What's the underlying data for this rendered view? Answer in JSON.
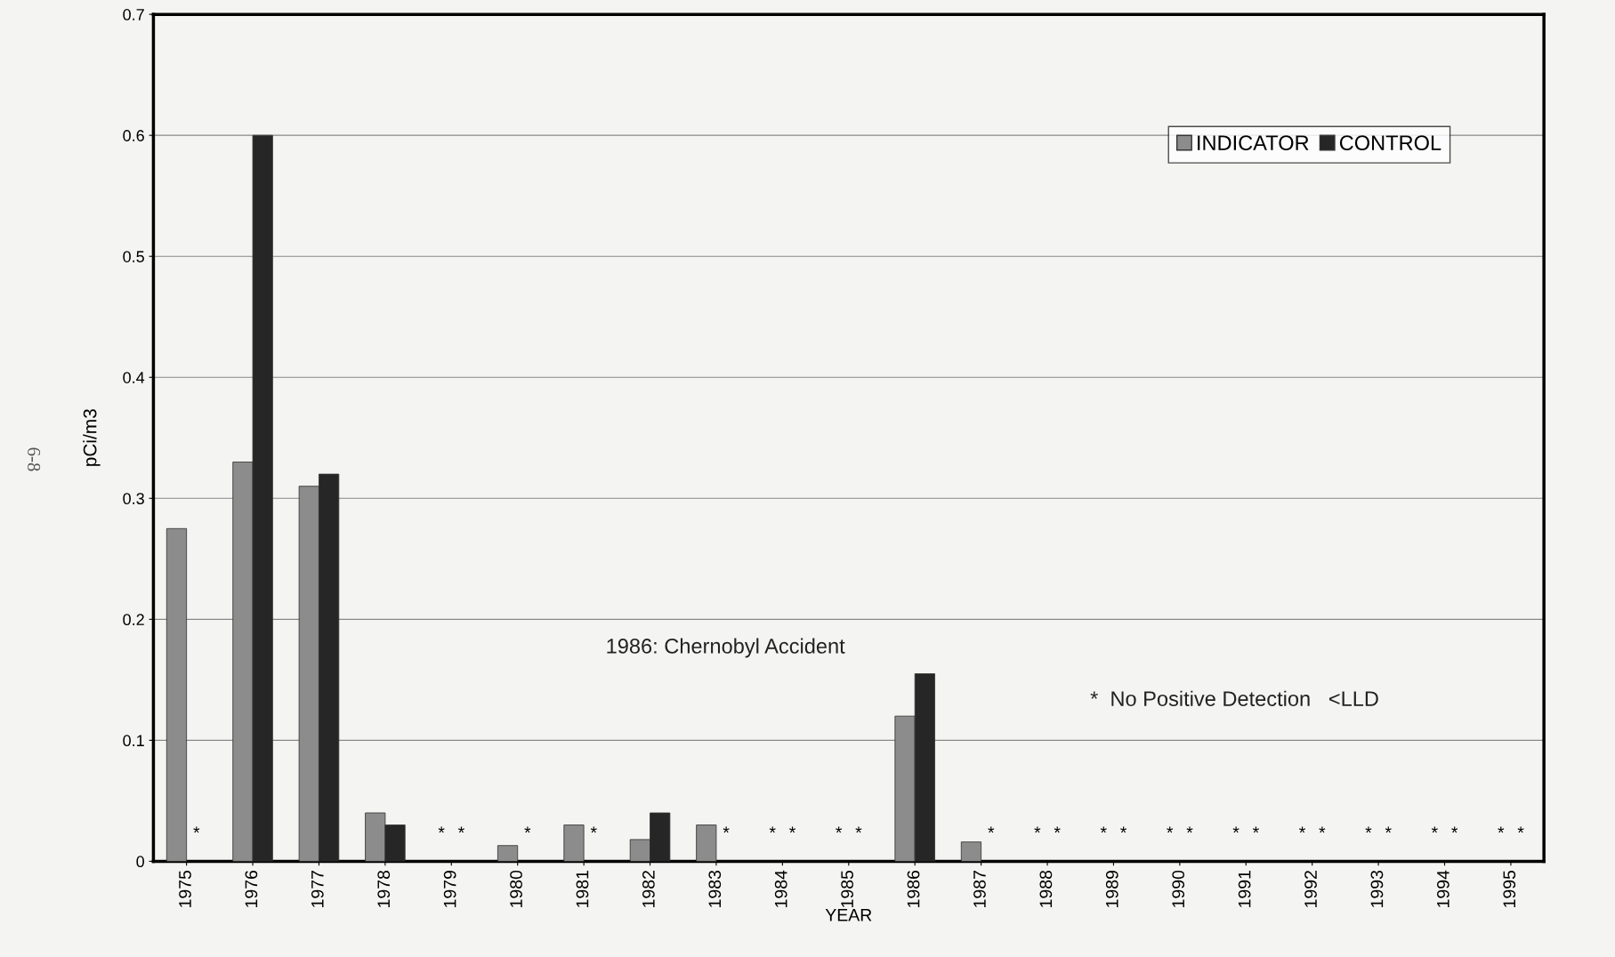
{
  "chart_data": {
    "type": "bar",
    "xlabel": "YEAR",
    "ylabel": "pCi/m3",
    "categories": [
      "1975",
      "1976",
      "1977",
      "1978",
      "1979",
      "1980",
      "1981",
      "1982",
      "1983",
      "1984",
      "1985",
      "1986",
      "1987",
      "1988",
      "1989",
      "1990",
      "1991",
      "1992",
      "1993",
      "1994",
      "1995"
    ],
    "series": [
      {
        "name": "INDICATOR",
        "color": "#8c8c8c",
        "values": [
          0.275,
          0.33,
          0.31,
          0.04,
          null,
          0.013,
          0.03,
          0.018,
          0.03,
          null,
          null,
          0.12,
          0.016,
          null,
          null,
          null,
          null,
          null,
          null,
          null,
          null
        ],
        "value_labels": [
          null,
          null,
          null,
          null,
          "*",
          null,
          null,
          null,
          null,
          "*",
          "*",
          null,
          null,
          "*",
          "*",
          "*",
          "*",
          "*",
          "*",
          "*",
          "*"
        ]
      },
      {
        "name": "CONTROL",
        "color": "#262626",
        "values": [
          null,
          0.6,
          0.32,
          0.03,
          null,
          null,
          null,
          0.04,
          null,
          null,
          null,
          0.155,
          null,
          null,
          null,
          null,
          null,
          null,
          null,
          null,
          null
        ],
        "value_labels": [
          "*",
          null,
          null,
          null,
          "*",
          "*",
          "*",
          null,
          "*",
          "*",
          "*",
          null,
          "*",
          "*",
          "*",
          "*",
          "*",
          "*",
          "*",
          "*",
          "*"
        ]
      }
    ],
    "ylim": [
      0,
      0.7
    ],
    "yticks": [
      0,
      0.1,
      0.2,
      0.3,
      0.4,
      0.5,
      0.6,
      0.7
    ],
    "grid": "y",
    "legend": "top right",
    "annotations": [
      "1986: Chernobyl Accident",
      "*  No Positive Detection   <LLD",
      "6-8"
    ]
  }
}
